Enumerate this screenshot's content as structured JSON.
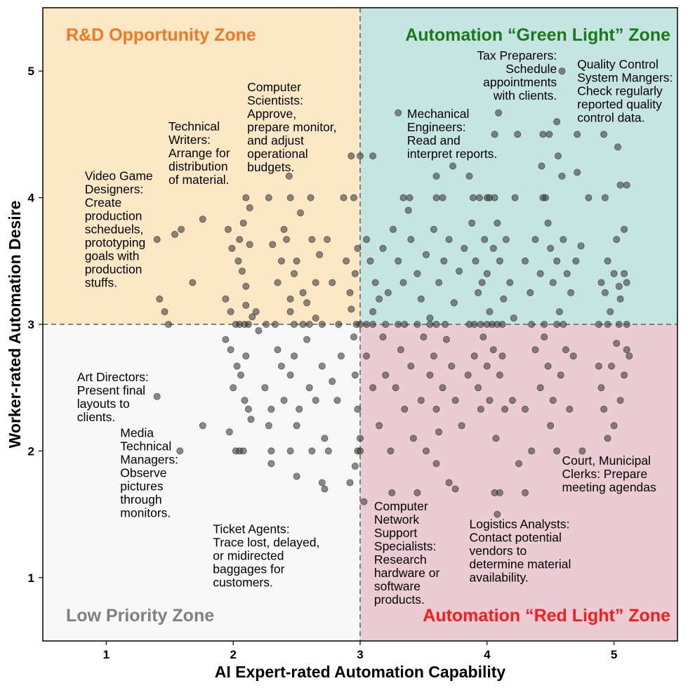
{
  "chart_data": {
    "type": "scatter",
    "xlabel": "AI Expert-rated Automation Capability",
    "ylabel": "Worker-rated Automation Desire",
    "xlim": [
      0.5,
      5.5
    ],
    "ylim": [
      0.5,
      5.5
    ],
    "xticks": [
      1,
      2,
      3,
      4,
      5
    ],
    "yticks": [
      1,
      2,
      3,
      4,
      5
    ],
    "threshold_x": 3,
    "threshold_y": 3,
    "point_color": "#404040",
    "zones": [
      {
        "label": "R&D Opportunity Zone",
        "quadrant": "top-left",
        "background": "#fde8c5",
        "text_color": "#f47820"
      },
      {
        "label": "Automation “Green Light” Zone",
        "quadrant": "top-right",
        "background": "#c5e5e3",
        "text_color": "#1a7a1a"
      },
      {
        "label": "Low Priority Zone",
        "quadrant": "bottom-left",
        "background": "#f8f8f8",
        "text_color": "#808080"
      },
      {
        "label": "Automation “Red Light” Zone",
        "quadrant": "bottom-right",
        "background": "#ecccd3",
        "text_color": "#ff1a1a"
      }
    ],
    "annotations": [
      {
        "lines": [
          "Video Game",
          "Designers:",
          "Create",
          "production",
          "scheduels,",
          "prototyping",
          "goals with",
          "production",
          "stuffs."
        ],
        "x": 0.83,
        "y": 4.14,
        "align": "start"
      },
      {
        "lines": [
          "Technical",
          "Writers:",
          "Arrange for",
          "distribution",
          "of material."
        ],
        "x": 1.49,
        "y": 4.53,
        "align": "start"
      },
      {
        "lines": [
          "Computer",
          "Scientists:",
          "Approve,",
          "prepare monitor,",
          "and adjust",
          "operational",
          "budgets."
        ],
        "x": 2.11,
        "y": 4.84,
        "align": "start"
      },
      {
        "lines": [
          "Mechanical",
          "Engineers:",
          "Read and",
          "interpret reports."
        ],
        "x": 3.37,
        "y": 4.63,
        "align": "start"
      },
      {
        "lines": [
          "Tax Preparers:",
          "Schedule",
          "appointments",
          "with clients."
        ],
        "x": 4.55,
        "y": 5.09,
        "align": "end"
      },
      {
        "lines": [
          "Quality Control",
          "System Mangers:",
          "Check regularly",
          "reported quality",
          "control data."
        ],
        "x": 4.71,
        "y": 5.02,
        "align": "start"
      },
      {
        "lines": [
          "Art Directors:",
          "Present final",
          "layouts to",
          "clients."
        ],
        "x": 0.77,
        "y": 2.55,
        "align": "start"
      },
      {
        "lines": [
          "Media",
          "Technical",
          "Managers:",
          "Observe",
          "pictures",
          "through",
          "monitors."
        ],
        "x": 1.11,
        "y": 2.11,
        "align": "start"
      },
      {
        "lines": [
          "Court, Municipal",
          "Clerks: Prepare",
          "meeting agendas"
        ],
        "x": 4.59,
        "y": 1.89,
        "align": "start"
      },
      {
        "lines": [
          "Ticket Agents:",
          "Trace lost, delayed,",
          "or midirected",
          "baggages for",
          "customers."
        ],
        "x": 1.84,
        "y": 1.35,
        "align": "start"
      },
      {
        "lines": [
          "Computer",
          "Network",
          "Support",
          "Specialists:",
          "Research",
          "hardware or",
          "software",
          "products."
        ],
        "x": 3.11,
        "y": 1.53,
        "align": "start"
      },
      {
        "lines": [
          "Logistics Analysts:",
          "Contact potential",
          "vendors to",
          "determine material",
          "availability."
        ],
        "x": 3.86,
        "y": 1.39,
        "align": "start"
      }
    ],
    "points": [
      [
        1.4,
        3.67
      ],
      [
        1.54,
        3.71
      ],
      [
        1.59,
        3.75
      ],
      [
        1.76,
        3.83
      ],
      [
        1.68,
        3.33
      ],
      [
        1.42,
        3.2
      ],
      [
        1.46,
        3.1
      ],
      [
        1.49,
        3.0
      ],
      [
        1.4,
        2.43
      ],
      [
        1.58,
        2.0
      ],
      [
        1.76,
        2.2
      ],
      [
        3.3,
        4.67
      ],
      [
        2.44,
        4.17
      ],
      [
        2.93,
        4.33
      ],
      [
        3.0,
        4.33
      ],
      [
        3.1,
        4.33
      ],
      [
        2.1,
        4.0
      ],
      [
        2.28,
        4.0
      ],
      [
        2.45,
        4.0
      ],
      [
        2.61,
        4.0
      ],
      [
        2.87,
        4.0
      ],
      [
        2.95,
        4.0
      ],
      [
        3.34,
        4.0
      ],
      [
        3.39,
        4.0
      ],
      [
        3.6,
        4.0
      ],
      [
        3.65,
        4.0
      ],
      [
        3.89,
        4.0
      ],
      [
        3.94,
        4.0
      ],
      [
        4.0,
        4.0
      ],
      [
        4.02,
        4.0
      ],
      [
        4.06,
        4.0
      ],
      [
        4.22,
        4.0
      ],
      [
        4.44,
        4.0
      ],
      [
        4.46,
        4.0
      ],
      [
        4.93,
        4.0
      ],
      [
        4.8,
        4.0
      ],
      [
        4.06,
        4.5
      ],
      [
        4.24,
        4.5
      ],
      [
        4.44,
        4.5
      ],
      [
        4.49,
        4.5
      ],
      [
        4.55,
        4.6
      ],
      [
        4.71,
        4.5
      ],
      [
        4.92,
        4.5
      ],
      [
        5.03,
        4.4
      ],
      [
        4.56,
        4.33
      ],
      [
        4.43,
        4.25
      ],
      [
        4.59,
        4.17
      ],
      [
        4.71,
        4.2
      ],
      [
        4.59,
        5.0
      ],
      [
        4.09,
        4.67
      ],
      [
        3.73,
        4.25
      ],
      [
        3.6,
        4.17
      ],
      [
        3.86,
        4.17
      ],
      [
        5.05,
        4.1
      ],
      [
        5.1,
        4.1
      ],
      [
        1.96,
        3.75
      ],
      [
        1.99,
        3.6
      ],
      [
        2.05,
        3.67
      ],
      [
        2.04,
        3.5
      ],
      [
        2.07,
        3.42
      ],
      [
        2.1,
        3.3
      ],
      [
        2.1,
        3.15
      ],
      [
        2.13,
        3.63
      ],
      [
        2.08,
        3.8
      ],
      [
        2.13,
        3.92
      ],
      [
        1.94,
        3.2
      ],
      [
        1.98,
        3.1
      ],
      [
        2.15,
        3.06
      ],
      [
        2.18,
        3.1
      ],
      [
        2.02,
        3.0
      ],
      [
        2.05,
        3.0
      ],
      [
        2.09,
        3.0
      ],
      [
        2.12,
        3.0
      ],
      [
        2.26,
        3.0
      ],
      [
        2.31,
        3.63
      ],
      [
        2.38,
        3.5
      ],
      [
        2.35,
        3.33
      ],
      [
        2.42,
        3.67
      ],
      [
        2.48,
        3.4
      ],
      [
        2.53,
        3.88
      ],
      [
        2.5,
        3.5
      ],
      [
        2.45,
        3.2
      ],
      [
        2.55,
        3.25
      ],
      [
        2.62,
        3.67
      ],
      [
        2.65,
        3.33
      ],
      [
        2.68,
        3.55
      ],
      [
        2.58,
        3.17
      ],
      [
        2.65,
        3.05
      ],
      [
        2.7,
        3.0
      ],
      [
        2.83,
        3.0
      ],
      [
        2.89,
        3.5
      ],
      [
        2.92,
        3.25
      ],
      [
        2.93,
        3.12
      ],
      [
        2.96,
        3.4
      ],
      [
        2.98,
        3.6
      ],
      [
        2.97,
        3.0
      ],
      [
        2.74,
        3.67
      ],
      [
        2.78,
        3.33
      ],
      [
        2.4,
        3.75
      ],
      [
        2.45,
        3.1
      ],
      [
        2.55,
        3.0
      ],
      [
        2.6,
        3.0
      ],
      [
        2.48,
        3.0
      ],
      [
        2.33,
        3.0
      ],
      [
        3.05,
        3.67
      ],
      [
        3.08,
        3.5
      ],
      [
        3.12,
        3.33
      ],
      [
        3.15,
        3.2
      ],
      [
        3.1,
        3.1
      ],
      [
        3.18,
        3.6
      ],
      [
        3.22,
        3.25
      ],
      [
        3.26,
        3.75
      ],
      [
        3.3,
        3.5
      ],
      [
        3.34,
        3.33
      ],
      [
        3.38,
        3.9
      ],
      [
        3.4,
        3.67
      ],
      [
        3.45,
        3.4
      ],
      [
        3.48,
        3.2
      ],
      [
        3.52,
        3.55
      ],
      [
        3.55,
        3.05
      ],
      [
        3.58,
        3.75
      ],
      [
        3.62,
        3.33
      ],
      [
        3.66,
        3.5
      ],
      [
        3.7,
        3.67
      ],
      [
        3.74,
        3.17
      ],
      [
        3.78,
        3.42
      ],
      [
        3.82,
        3.6
      ],
      [
        3.86,
        3.0
      ],
      [
        3.88,
        3.8
      ],
      [
        3.91,
        3.5
      ],
      [
        3.93,
        3.25
      ],
      [
        3.96,
        3.33
      ],
      [
        3.98,
        3.67
      ],
      [
        4.0,
        3.4
      ],
      [
        4.02,
        3.1
      ],
      [
        4.05,
        3.6
      ],
      [
        4.08,
        3.8
      ],
      [
        4.1,
        3.5
      ],
      [
        4.13,
        3.2
      ],
      [
        4.15,
        3.67
      ],
      [
        4.18,
        3.33
      ],
      [
        4.21,
        3.05
      ],
      [
        4.3,
        3.5
      ],
      [
        4.34,
        3.25
      ],
      [
        4.38,
        3.67
      ],
      [
        4.42,
        3.4
      ],
      [
        4.45,
        3.0
      ],
      [
        4.48,
        3.8
      ],
      [
        4.5,
        3.6
      ],
      [
        4.52,
        3.33
      ],
      [
        4.55,
        3.5
      ],
      [
        4.57,
        3.1
      ],
      [
        4.6,
        3.67
      ],
      [
        4.63,
        3.4
      ],
      [
        4.66,
        3.25
      ],
      [
        4.7,
        3.5
      ],
      [
        4.74,
        3.62
      ],
      [
        4.9,
        3.33
      ],
      [
        4.93,
        3.25
      ],
      [
        4.95,
        3.5
      ],
      [
        4.97,
        3.1
      ],
      [
        5.0,
        3.4
      ],
      [
        5.02,
        3.67
      ],
      [
        5.05,
        3.2
      ],
      [
        5.08,
        3.4
      ],
      [
        5.1,
        3.0
      ],
      [
        5.1,
        3.33
      ],
      [
        5.08,
        3.75
      ],
      [
        5.04,
        3.3
      ],
      [
        3.0,
        3.0
      ],
      [
        3.05,
        3.0
      ],
      [
        3.1,
        3.0
      ],
      [
        3.2,
        3.0
      ],
      [
        3.3,
        3.0
      ],
      [
        3.35,
        3.0
      ],
      [
        3.45,
        3.0
      ],
      [
        3.55,
        3.0
      ],
      [
        3.6,
        3.0
      ],
      [
        3.67,
        3.0
      ],
      [
        3.9,
        3.0
      ],
      [
        3.95,
        3.0
      ],
      [
        4.0,
        3.0
      ],
      [
        4.04,
        3.0
      ],
      [
        4.08,
        3.0
      ],
      [
        4.12,
        3.0
      ],
      [
        4.35,
        3.0
      ],
      [
        4.55,
        3.0
      ],
      [
        4.6,
        3.0
      ],
      [
        4.88,
        3.0
      ],
      [
        4.95,
        3.0
      ],
      [
        5.04,
        3.0
      ],
      [
        1.94,
        2.88
      ],
      [
        1.98,
        2.8
      ],
      [
        2.03,
        2.67
      ],
      [
        2.0,
        2.5
      ],
      [
        2.06,
        2.6
      ],
      [
        2.09,
        2.4
      ],
      [
        2.12,
        2.33
      ],
      [
        2.14,
        2.25
      ],
      [
        1.97,
        2.15
      ],
      [
        2.02,
        2.0
      ],
      [
        2.05,
        2.0
      ],
      [
        2.08,
        2.0
      ],
      [
        2.1,
        2.75
      ],
      [
        2.2,
        2.95
      ],
      [
        2.25,
        2.5
      ],
      [
        2.3,
        2.33
      ],
      [
        2.28,
        2.2
      ],
      [
        2.3,
        2.0
      ],
      [
        2.3,
        1.9
      ],
      [
        2.35,
        2.8
      ],
      [
        2.38,
        2.67
      ],
      [
        2.4,
        2.4
      ],
      [
        2.45,
        2.6
      ],
      [
        2.48,
        2.75
      ],
      [
        2.5,
        2.2
      ],
      [
        2.45,
        2.0
      ],
      [
        2.52,
        2.33
      ],
      [
        2.58,
        2.88
      ],
      [
        2.6,
        2.5
      ],
      [
        2.65,
        2.4
      ],
      [
        2.7,
        2.67
      ],
      [
        2.72,
        2.1
      ],
      [
        2.75,
        2.0
      ],
      [
        2.78,
        2.55
      ],
      [
        2.82,
        2.4
      ],
      [
        2.85,
        2.75
      ],
      [
        2.7,
        1.75
      ],
      [
        2.72,
        1.7
      ],
      [
        2.95,
        2.9
      ],
      [
        2.96,
        2.6
      ],
      [
        2.98,
        2.33
      ],
      [
        3.0,
        2.1
      ],
      [
        3.0,
        2.0
      ],
      [
        2.96,
        1.88
      ],
      [
        2.92,
        1.75
      ],
      [
        3.03,
        1.6
      ],
      [
        3.05,
        2.75
      ],
      [
        3.1,
        2.5
      ],
      [
        3.15,
        2.2
      ],
      [
        3.18,
        2.9
      ],
      [
        3.2,
        2.6
      ],
      [
        3.24,
        2.0
      ],
      [
        3.28,
        2.5
      ],
      [
        3.32,
        2.8
      ],
      [
        3.35,
        2.33
      ],
      [
        3.4,
        2.67
      ],
      [
        3.42,
        2.1
      ],
      [
        3.48,
        2.4
      ],
      [
        3.5,
        2.9
      ],
      [
        3.55,
        2.6
      ],
      [
        3.58,
        2.75
      ],
      [
        3.6,
        2.33
      ],
      [
        3.62,
        2.15
      ],
      [
        3.65,
        2.5
      ],
      [
        3.68,
        2.88
      ],
      [
        3.72,
        2.67
      ],
      [
        3.75,
        2.4
      ],
      [
        3.6,
        1.9
      ],
      [
        3.45,
        1.67
      ],
      [
        3.25,
        1.67
      ],
      [
        3.7,
        1.75
      ],
      [
        3.75,
        1.7
      ],
      [
        3.8,
        2.2
      ],
      [
        3.85,
        2.6
      ],
      [
        3.9,
        2.75
      ],
      [
        3.93,
        2.5
      ],
      [
        3.95,
        2.33
      ],
      [
        3.97,
        2.9
      ],
      [
        4.0,
        2.67
      ],
      [
        4.02,
        2.4
      ],
      [
        4.05,
        2.8
      ],
      [
        4.07,
        2.1
      ],
      [
        4.1,
        2.6
      ],
      [
        4.12,
        2.75
      ],
      [
        4.14,
        2.33
      ],
      [
        4.06,
        1.67
      ],
      [
        4.08,
        1.5
      ],
      [
        4.1,
        1.67
      ],
      [
        4.2,
        2.4
      ],
      [
        4.3,
        2.33
      ],
      [
        4.35,
        2.0
      ],
      [
        4.38,
        2.8
      ],
      [
        4.42,
        2.5
      ],
      [
        4.45,
        2.9
      ],
      [
        4.48,
        2.67
      ],
      [
        4.5,
        2.2
      ],
      [
        4.52,
        2.4
      ],
      [
        4.55,
        2.0
      ],
      [
        4.58,
        2.6
      ],
      [
        4.62,
        2.8
      ],
      [
        4.65,
        2.33
      ],
      [
        4.68,
        2.75
      ],
      [
        4.75,
        2.0
      ],
      [
        4.88,
        2.67
      ],
      [
        4.9,
        2.5
      ],
      [
        4.92,
        2.33
      ],
      [
        4.95,
        2.1
      ],
      [
        4.98,
        2.67
      ],
      [
        5.0,
        2.2
      ],
      [
        5.02,
        2.85
      ],
      [
        5.05,
        2.4
      ],
      [
        5.08,
        2.6
      ],
      [
        5.1,
        2.8
      ],
      [
        5.12,
        2.75
      ],
      [
        4.3,
        1.67
      ],
      [
        4.25,
        1.9
      ],
      [
        3.52,
        2.0
      ],
      [
        2.5,
        1.8
      ],
      [
        2.62,
        2.0
      ],
      [
        2.98,
        2.0
      ]
    ]
  }
}
